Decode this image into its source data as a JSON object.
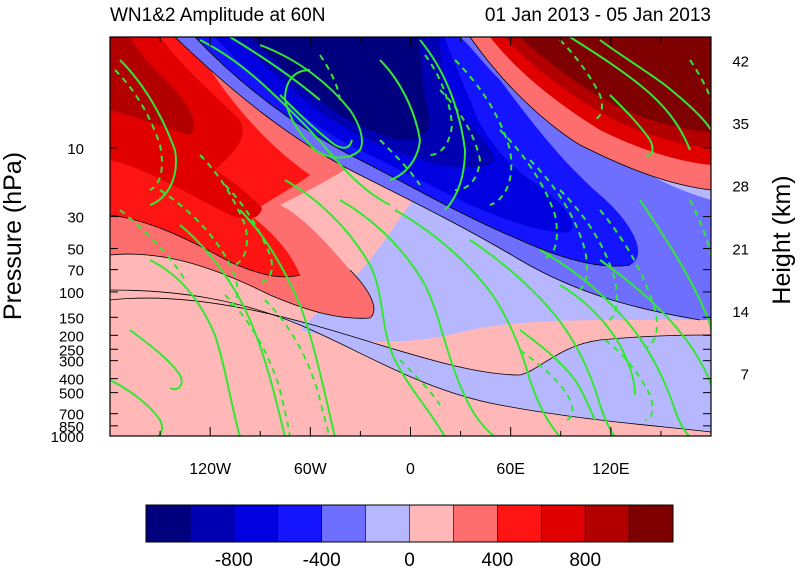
{
  "chart_data": {
    "type": "heatmap",
    "title_left": "WN1&2 Amplitude at 60N",
    "title_right": "01 Jan 2013 - 05 Jan 2013",
    "ylabel_left": "Pressure (hPa)",
    "ylabel_right": "Height (km)",
    "x_ticks": [
      {
        "value": -120,
        "label": "120W"
      },
      {
        "value": -60,
        "label": "60W"
      },
      {
        "value": 0,
        "label": "0"
      },
      {
        "value": 60,
        "label": "60E"
      },
      {
        "value": 120,
        "label": "120E"
      }
    ],
    "xlim": [
      -180,
      180
    ],
    "y_ticks_pressure": [
      "10",
      "30",
      "50",
      "70",
      "100",
      "150",
      "200",
      "250",
      "300",
      "400",
      "500",
      "700",
      "850",
      "1000"
    ],
    "y_ticks_height": [
      "42",
      "35",
      "28",
      "21",
      "14",
      "7"
    ],
    "colorbar": {
      "levels": [
        -1000,
        -800,
        -600,
        -400,
        -200,
        0,
        200,
        400,
        600,
        800,
        1000
      ],
      "tick_labels": [
        "-800",
        "-400",
        "0",
        "400",
        "800"
      ],
      "tick_values": [
        -800,
        -400,
        0,
        400,
        800
      ],
      "colors": [
        "#00007f",
        "#0000b2",
        "#0000e0",
        "#1414ff",
        "#6e6eff",
        "#b7b7ff",
        "#ffb7b7",
        "#ff6e6e",
        "#ff1414",
        "#e00000",
        "#b20000",
        "#7f0000"
      ]
    },
    "contour_color": "#33e833"
  }
}
